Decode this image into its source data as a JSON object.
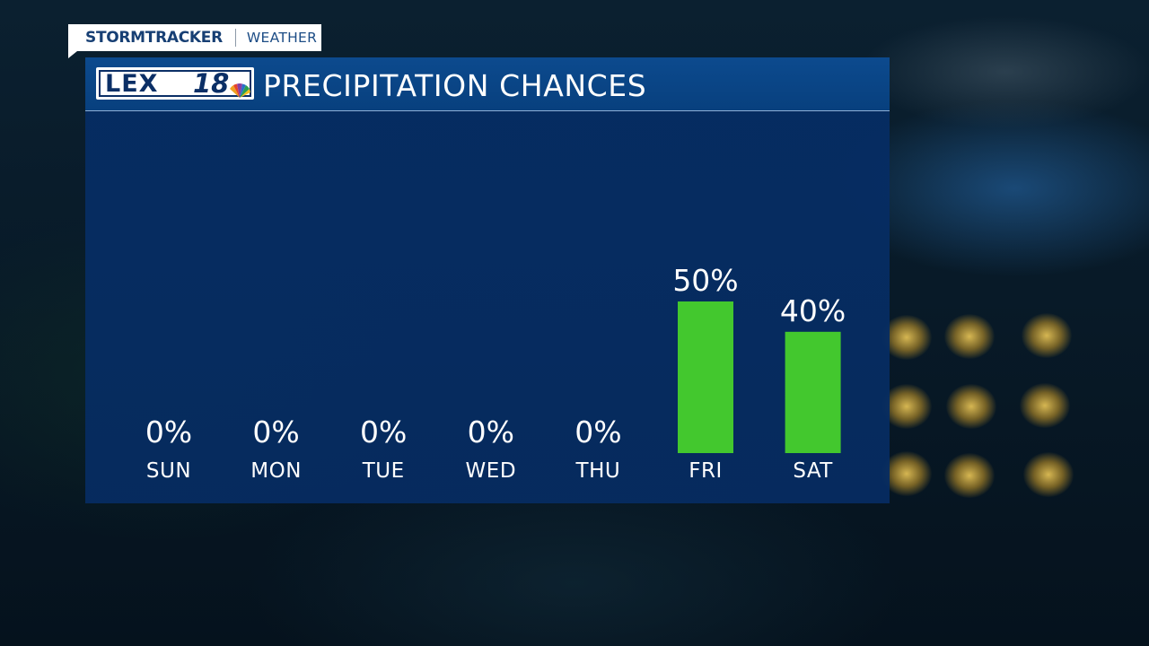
{
  "header_tag": {
    "brand": "STORMTRACKER",
    "section": "WEATHER"
  },
  "logo": {
    "text": "LEX",
    "number": "18"
  },
  "colors": {
    "bar": "#43c82e",
    "panel": "#052d64",
    "text": "#ffffff"
  },
  "chart_data": {
    "type": "bar",
    "title": "PRECIPITATION CHANCES",
    "categories": [
      "SUN",
      "MON",
      "TUE",
      "WED",
      "THU",
      "FRI",
      "SAT"
    ],
    "values": [
      0,
      0,
      0,
      0,
      0,
      50,
      40
    ],
    "value_labels": [
      "0%",
      "0%",
      "0%",
      "0%",
      "0%",
      "50%",
      "40%"
    ],
    "unit": "%",
    "ylim": [
      0,
      100
    ],
    "grid": false,
    "legend": "none"
  }
}
